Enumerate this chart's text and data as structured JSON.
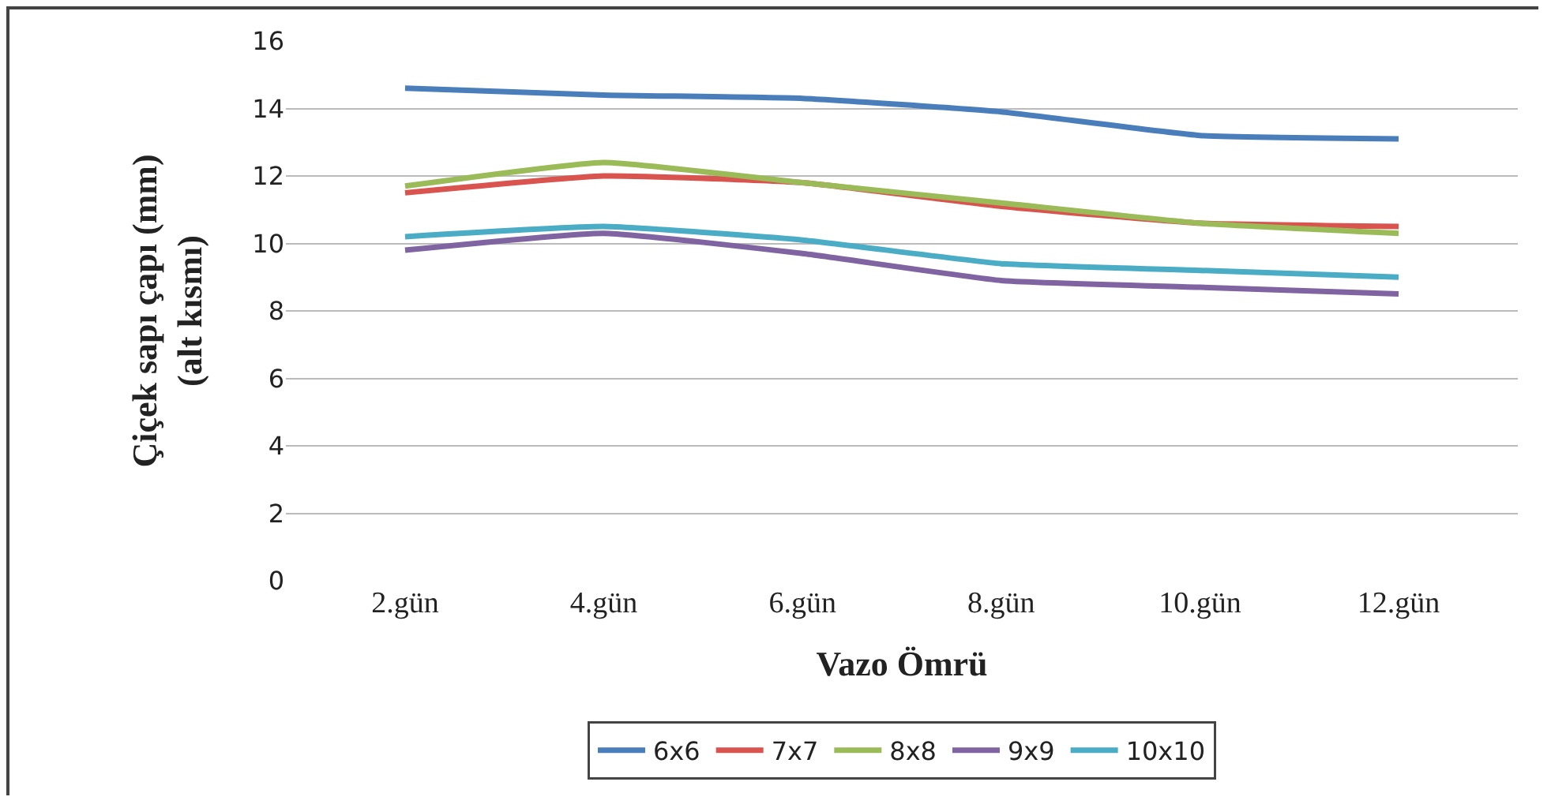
{
  "chart_data": {
    "type": "line",
    "xlabel": "Vazo Ömrü",
    "ylabel": "Çiçek sapı çapı (mm)\n(alt kısmı)",
    "categories": [
      "2.gün",
      "4.gün",
      "6.gün",
      "8.gün",
      "10.gün",
      "12.gün"
    ],
    "series": [
      {
        "name": "6x6",
        "color": "#4a7ebb",
        "values": [
          14.6,
          14.4,
          14.3,
          13.9,
          13.2,
          13.1
        ]
      },
      {
        "name": "7x7",
        "color": "#d9534f",
        "values": [
          11.5,
          12.0,
          11.8,
          11.1,
          10.6,
          10.5
        ]
      },
      {
        "name": "8x8",
        "color": "#9bbb59",
        "values": [
          11.7,
          12.4,
          11.8,
          11.2,
          10.6,
          10.3
        ]
      },
      {
        "name": "9x9",
        "color": "#8064a2",
        "values": [
          9.8,
          10.3,
          9.7,
          8.9,
          8.7,
          8.5
        ]
      },
      {
        "name": "10x10",
        "color": "#4bacc6",
        "values": [
          10.2,
          10.5,
          10.1,
          9.4,
          9.2,
          9.0
        ]
      }
    ],
    "ylim": [
      0,
      16
    ],
    "yticks": [
      0,
      2,
      4,
      6,
      8,
      10,
      12,
      14,
      16
    ],
    "grid": "y",
    "legend": "bottom",
    "marker": "none",
    "line_style": "solid"
  }
}
